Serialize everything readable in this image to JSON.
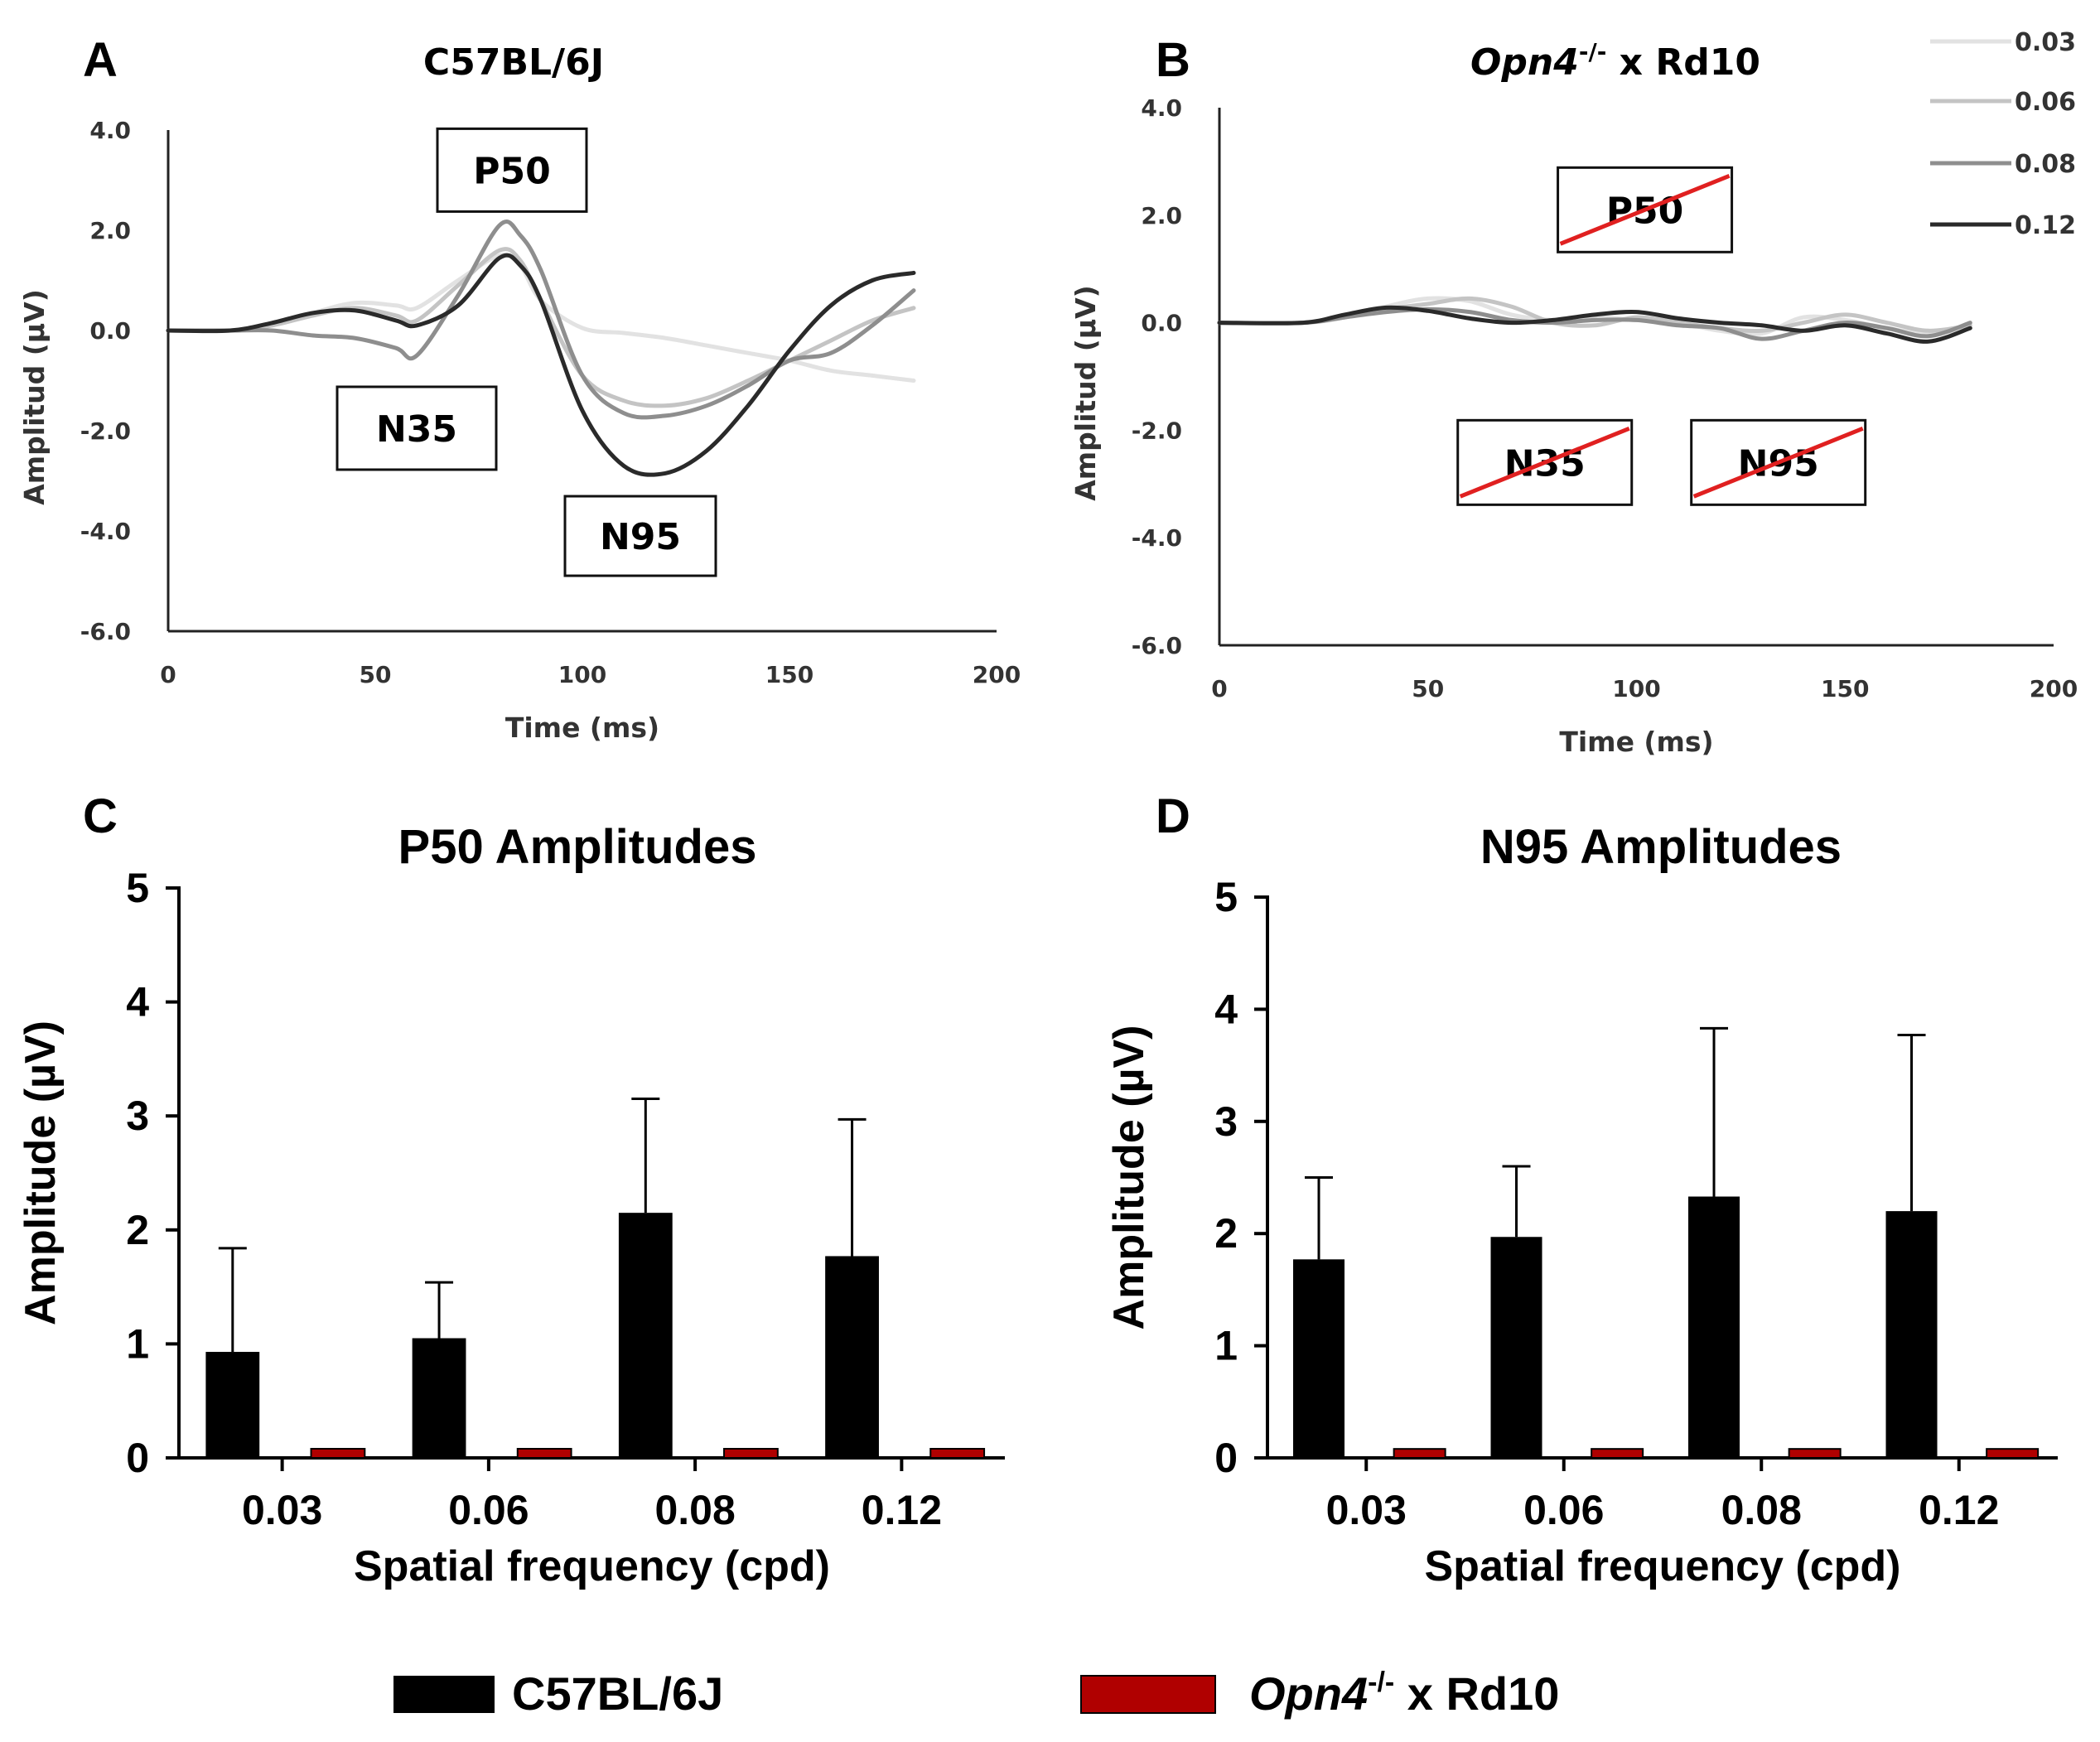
{
  "chart_data": [
    {
      "id": "A",
      "panel": "A",
      "type": "line",
      "title": "C57BL/6J",
      "xlabel": "Time (ms)",
      "ylabel": "Amplitud (µV)",
      "xlim": [
        0,
        200
      ],
      "ylim": [
        -6.0,
        4.0
      ],
      "xticks": [
        "0",
        "50",
        "100",
        "150",
        "200"
      ],
      "xtick_values": [
        0,
        50,
        100,
        150,
        200
      ],
      "yticks": [
        "4.0",
        "2.0",
        "0.0",
        "-2.0",
        "-4.0",
        "-6.0"
      ],
      "ytick_values": [
        4,
        2,
        0,
        -2,
        -4,
        -6
      ],
      "series": [
        {
          "name": "0.03",
          "color": "#e2e2e2",
          "x": [
            0,
            15,
            25,
            35,
            45,
            55,
            60,
            70,
            80,
            85,
            90,
            100,
            110,
            120,
            130,
            140,
            150,
            160,
            170,
            180
          ],
          "y": [
            0,
            0,
            0.1,
            0.35,
            0.55,
            0.5,
            0.45,
            1.0,
            1.5,
            1.3,
            0.6,
            0.05,
            -0.05,
            -0.15,
            -0.3,
            -0.45,
            -0.6,
            -0.8,
            -0.9,
            -1.0
          ]
        },
        {
          "name": "0.06",
          "color": "#c4c4c4",
          "x": [
            0,
            15,
            25,
            35,
            45,
            55,
            60,
            70,
            80,
            85,
            90,
            100,
            110,
            120,
            130,
            140,
            150,
            160,
            170,
            180
          ],
          "y": [
            0,
            0,
            0.1,
            0.3,
            0.45,
            0.3,
            0.2,
            0.9,
            1.6,
            1.4,
            0.6,
            -0.9,
            -1.4,
            -1.5,
            -1.35,
            -1.0,
            -0.6,
            -0.2,
            0.2,
            0.45
          ]
        },
        {
          "name": "0.08",
          "color": "#8e8e8e",
          "x": [
            0,
            15,
            25,
            35,
            45,
            55,
            60,
            70,
            80,
            85,
            90,
            100,
            110,
            120,
            130,
            140,
            150,
            160,
            170,
            180
          ],
          "y": [
            0,
            0,
            0,
            -0.1,
            -0.15,
            -0.35,
            -0.5,
            0.7,
            2.1,
            1.9,
            1.2,
            -0.9,
            -1.65,
            -1.7,
            -1.5,
            -1.1,
            -0.6,
            -0.45,
            0.1,
            0.8
          ]
        },
        {
          "name": "0.12",
          "color": "#2a2a2a",
          "x": [
            0,
            15,
            25,
            35,
            45,
            55,
            60,
            70,
            80,
            85,
            90,
            100,
            110,
            120,
            130,
            140,
            150,
            160,
            170,
            180
          ],
          "y": [
            0,
            0,
            0.15,
            0.35,
            0.4,
            0.2,
            0.1,
            0.5,
            1.45,
            1.3,
            0.6,
            -1.6,
            -2.7,
            -2.85,
            -2.4,
            -1.5,
            -0.4,
            0.5,
            1.0,
            1.15
          ]
        }
      ],
      "annotations": [
        {
          "label": "P50",
          "x": 83,
          "y": 3.2,
          "struck": false
        },
        {
          "label": "N35",
          "x": 60,
          "y": -1.95,
          "struck": false
        },
        {
          "label": "N95",
          "x": 114,
          "y": -4.1,
          "struck": false
        }
      ]
    },
    {
      "id": "B",
      "panel": "B",
      "type": "line",
      "title_italic": "Opn4",
      "title_sup": "-/-",
      "title_rest": " x Rd10",
      "xlabel": "Time (ms)",
      "ylabel": "Amplitud (µV)",
      "xlim": [
        0,
        200
      ],
      "ylim": [
        -6.0,
        4.0
      ],
      "xticks": [
        "0",
        "50",
        "100",
        "150",
        "200"
      ],
      "xtick_values": [
        0,
        50,
        100,
        150,
        200
      ],
      "yticks": [
        "4.0",
        "2.0",
        "0.0",
        "-2.0",
        "-4.0",
        "-6.0"
      ],
      "ytick_values": [
        4,
        2,
        0,
        -2,
        -4,
        -6
      ],
      "series": [
        {
          "name": "0.03",
          "color": "#e2e2e2",
          "x": [
            0,
            20,
            30,
            40,
            50,
            60,
            70,
            80,
            90,
            100,
            110,
            120,
            130,
            140,
            150,
            160,
            170,
            180
          ],
          "y": [
            0,
            0,
            0.1,
            0.3,
            0.45,
            0.4,
            0.15,
            0.05,
            0.1,
            0.05,
            0.0,
            -0.15,
            -0.2,
            0.1,
            0.05,
            -0.1,
            -0.2,
            -0.1
          ]
        },
        {
          "name": "0.06",
          "color": "#c4c4c4",
          "x": [
            0,
            20,
            30,
            40,
            50,
            60,
            70,
            80,
            90,
            100,
            110,
            120,
            130,
            140,
            150,
            160,
            170,
            180
          ],
          "y": [
            0,
            0,
            0.1,
            0.25,
            0.35,
            0.45,
            0.3,
            0.0,
            -0.05,
            0.1,
            0.0,
            -0.1,
            -0.15,
            0.0,
            0.15,
            0.0,
            -0.15,
            -0.05
          ]
        },
        {
          "name": "0.08",
          "color": "#8e8e8e",
          "x": [
            0,
            20,
            30,
            40,
            50,
            60,
            70,
            80,
            90,
            100,
            110,
            120,
            130,
            140,
            150,
            160,
            170,
            180
          ],
          "y": [
            0,
            0,
            0.1,
            0.2,
            0.25,
            0.2,
            0.05,
            0.0,
            0.05,
            0.05,
            -0.05,
            -0.1,
            -0.3,
            -0.15,
            0.0,
            -0.1,
            -0.25,
            0.0
          ]
        },
        {
          "name": "0.12",
          "color": "#2a2a2a",
          "x": [
            0,
            20,
            30,
            40,
            50,
            60,
            70,
            80,
            90,
            100,
            110,
            120,
            130,
            140,
            150,
            160,
            170,
            180
          ],
          "y": [
            0,
            0,
            0.15,
            0.28,
            0.22,
            0.08,
            0.0,
            0.05,
            0.15,
            0.2,
            0.08,
            0.0,
            -0.05,
            -0.15,
            -0.05,
            -0.2,
            -0.35,
            -0.1
          ]
        }
      ],
      "annotations": [
        {
          "label": "P50",
          "x": 102,
          "y": 2.1,
          "struck": true
        },
        {
          "label": "N35",
          "x": 78,
          "y": -2.6,
          "struck": true
        },
        {
          "label": "N95",
          "x": 134,
          "y": -2.6,
          "struck": true
        }
      ],
      "legend": {
        "position": "top-right",
        "entries": [
          "0.03",
          "0.06",
          "0.08",
          "0.12"
        ]
      }
    },
    {
      "id": "C",
      "panel": "C",
      "type": "bar",
      "title": "P50 Amplitudes",
      "xlabel": "Spatial frequency (cpd)",
      "ylabel": "Amplitude (µV)",
      "ylim": [
        0,
        5
      ],
      "yticks": [
        "0",
        "1",
        "2",
        "3",
        "4",
        "5"
      ],
      "categories": [
        "0.03",
        "0.06",
        "0.08",
        "0.12"
      ],
      "series": [
        {
          "name": "C57BL/6J",
          "color": "#000000",
          "values": [
            0.93,
            1.05,
            2.15,
            1.77
          ],
          "errors": [
            0.91,
            0.49,
            1.0,
            1.2
          ]
        },
        {
          "name": "Opn4-/- x Rd10",
          "color": "#b00000",
          "values": [
            0.08,
            0.08,
            0.08,
            0.08
          ],
          "errors": [
            0,
            0,
            0,
            0
          ]
        }
      ]
    },
    {
      "id": "D",
      "panel": "D",
      "type": "bar",
      "title": "N95 Amplitudes",
      "xlabel": "Spatial frequency (cpd)",
      "ylabel": "Amplitude (µV)",
      "ylim": [
        0,
        5
      ],
      "yticks": [
        "0",
        "1",
        "2",
        "3",
        "4",
        "5"
      ],
      "categories": [
        "0.03",
        "0.06",
        "0.08",
        "0.12"
      ],
      "series": [
        {
          "name": "C57BL/6J",
          "color": "#000000",
          "values": [
            1.77,
            1.97,
            2.33,
            2.2
          ],
          "errors": [
            0.73,
            0.63,
            1.5,
            1.57
          ]
        },
        {
          "name": "Opn4-/- x Rd10",
          "color": "#b00000",
          "values": [
            0.08,
            0.08,
            0.08,
            0.08
          ],
          "errors": [
            0,
            0,
            0,
            0
          ]
        }
      ]
    }
  ],
  "bottom_legend": [
    {
      "label": "C57BL/6J",
      "color": "#000000"
    },
    {
      "label_italic": "Opn4",
      "label_sup": "-/-",
      "label_rest": " x Rd10",
      "color": "#b00000"
    }
  ],
  "colors": {
    "strike": "#e02020",
    "bar_wt": "#000000",
    "bar_ko": "#b00000"
  }
}
